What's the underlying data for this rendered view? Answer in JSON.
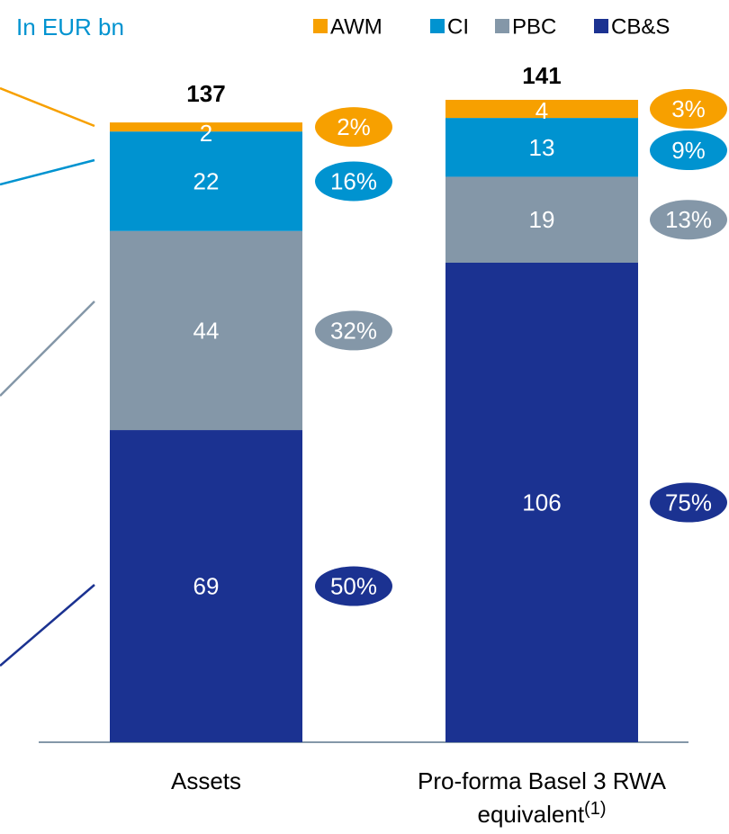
{
  "chart_data": {
    "type": "stacked_bar",
    "subtitle": "In EUR bn",
    "categories": [
      "Assets",
      "Pro-forma Basel 3 RWA equivalent"
    ],
    "category_notes": [
      null,
      "(1)"
    ],
    "totals": [
      137,
      141
    ],
    "series": [
      {
        "name": "CB&S",
        "color": "#1b3291",
        "values": [
          69,
          106
        ],
        "shares": [
          50,
          75
        ],
        "share_labels": [
          "50%",
          "75%"
        ]
      },
      {
        "name": "PBC",
        "color": "#8497a8",
        "values": [
          44,
          19
        ],
        "shares": [
          32,
          13
        ],
        "share_labels": [
          "32%",
          "13%"
        ]
      },
      {
        "name": "CI",
        "color": "#0093d0",
        "values": [
          22,
          13
        ],
        "shares": [
          16,
          9
        ],
        "share_labels": [
          "16%",
          "9%"
        ]
      },
      {
        "name": "AWM",
        "color": "#f7a000",
        "values": [
          2,
          4
        ],
        "shares": [
          2,
          3
        ],
        "share_labels": [
          "2%",
          "3%"
        ]
      }
    ],
    "legend": "top-right"
  }
}
